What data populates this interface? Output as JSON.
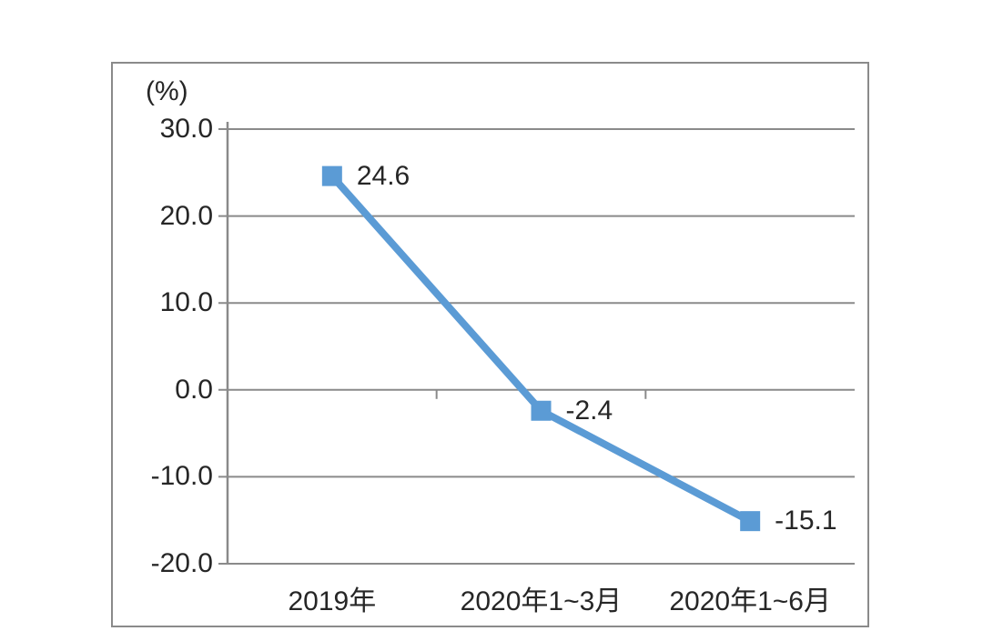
{
  "chart_data": {
    "type": "line",
    "categories": [
      "2019年",
      "2020年1~3月",
      "2020年1~6月"
    ],
    "values": [
      24.6,
      -2.4,
      -15.1
    ],
    "data_labels": [
      "24.6",
      "-2.4",
      "-15.1"
    ],
    "unit_label": "(%)",
    "y_tick_labels": [
      "30.0",
      "20.0",
      "10.0",
      "0.0",
      "-10.0",
      "-20.0"
    ],
    "y_ticks": [
      30.0,
      20.0,
      10.0,
      0.0,
      -10.0,
      -20.0
    ],
    "ylim": [
      -20.0,
      30.0
    ],
    "xlabel": "",
    "ylabel": "(%)",
    "title": "",
    "grid": true,
    "legend_position": "none",
    "marker": "square",
    "colors": {
      "line": "#5B9BD5",
      "marker": "#5B9BD5",
      "grid": "#8a8a8a",
      "axis": "#8a8a8a",
      "frame_border": "#8a8a8a",
      "text": "#262626",
      "background": "#ffffff"
    }
  }
}
